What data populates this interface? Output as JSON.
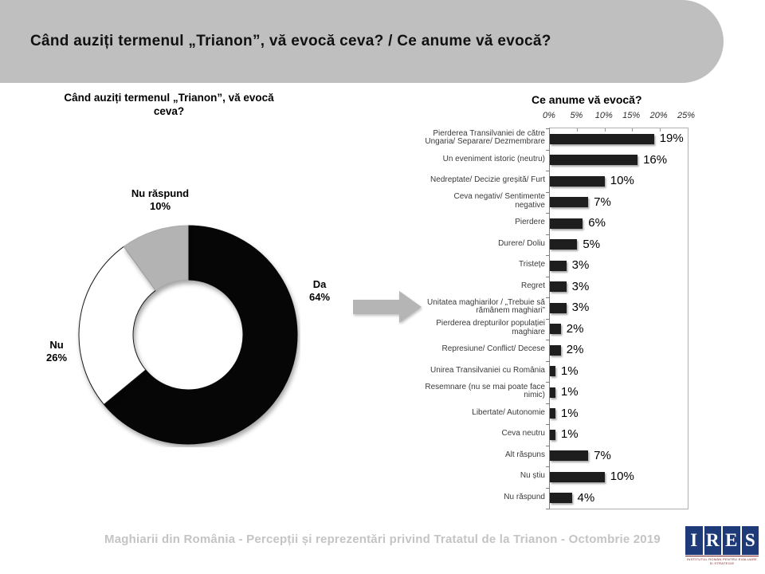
{
  "header": {
    "title": "Când auziți termenul „Trianon”, vă evocă ceva? / Ce anume vă evocă?",
    "bg_color": "#bfbfbf"
  },
  "arrow": {
    "color": "#b5b5b5"
  },
  "footer": {
    "text": "Maghiarii din România - Percepții și reprezentări privind Tratatul de la Trianon - Octombrie 2019",
    "color": "#c4c4c4"
  },
  "logo": {
    "letters": [
      "I",
      "R",
      "E",
      "S"
    ],
    "bg_color": "#1e3a78",
    "tagline": "Institutul Român pentru Evaluare și Strategie"
  },
  "chart_data": [
    {
      "type": "pie",
      "subtype": "donut",
      "title": "Când auziți termenul „Trianon”, vă\nevocă ceva?",
      "slices": [
        {
          "label": "Da",
          "value": 64,
          "pct": "64%",
          "color": "#060606",
          "stroke": "#060606"
        },
        {
          "label": "Nu",
          "value": 26,
          "pct": "26%",
          "color": "#ffffff",
          "stroke": "#1a1a1a"
        },
        {
          "label": "Nu răspund",
          "value": 10,
          "pct": "10%",
          "color": "#b3b3b3",
          "stroke": "#a8a8a8"
        }
      ]
    },
    {
      "type": "bar",
      "orientation": "horizontal",
      "title": "Ce anume vă evocă?",
      "xlim": [
        0,
        25
      ],
      "x_ticks": [
        "0%",
        "5%",
        "10%",
        "15%",
        "20%",
        "25%"
      ],
      "bar_color": "#1e1e1e",
      "categories": [
        "Pierderea Transilvaniei de către\nUngaria/ Separare/ Dezmembrare",
        "Un eveniment istoric (neutru)",
        "Nedreptate/ Decizie greșită/ Furt",
        "Ceva negativ/ Sentimente\nnegative",
        "Pierdere",
        "Durere/ Doliu",
        "Tristețe",
        "Regret",
        "Unitatea maghiarilor / „Trebuie să\nrămânem maghiari”",
        "Pierderea drepturilor populației\nmaghiare",
        "Represiune/ Conflict/ Decese",
        "Unirea Transilvaniei cu România",
        "Resemnare (nu se mai poate face\nnimic)",
        "Libertate/ Autonomie",
        "Ceva neutru",
        "Alt răspuns",
        "Nu știu",
        "Nu răspund"
      ],
      "values": [
        19,
        16,
        10,
        7,
        6,
        5,
        3,
        3,
        3,
        2,
        2,
        1,
        1,
        1,
        1,
        7,
        10,
        4
      ],
      "value_labels": [
        "19%",
        "16%",
        "10%",
        "7%",
        "6%",
        "5%",
        "3%",
        "3%",
        "3%",
        "2%",
        "2%",
        "1%",
        "1%",
        "1%",
        "1%",
        "7%",
        "10%",
        "4%"
      ]
    }
  ]
}
